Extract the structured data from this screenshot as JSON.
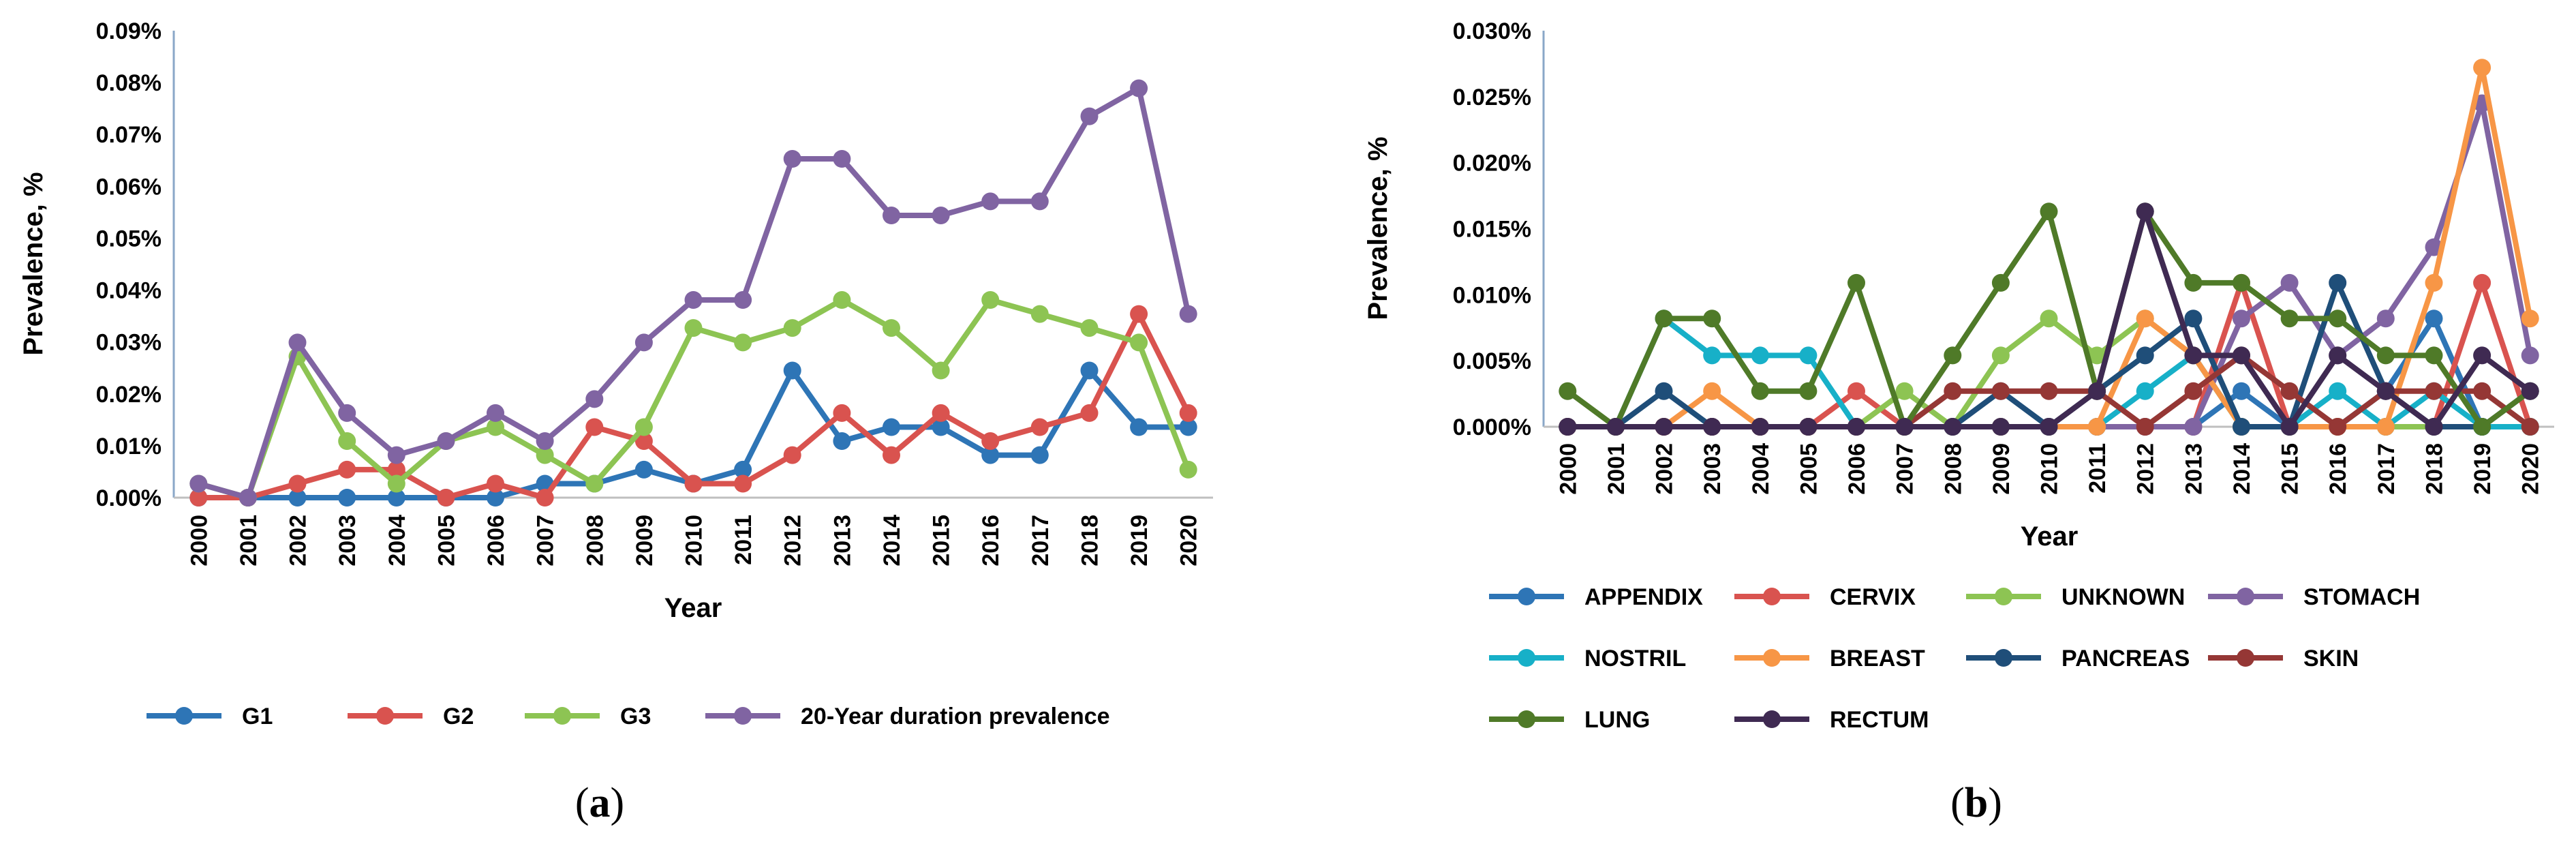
{
  "chart_data": [
    {
      "type": "line",
      "caption": "a",
      "xlabel": "Year",
      "ylabel": "Prevalence, %",
      "ylim": [
        0,
        0.09
      ],
      "yticks": [
        "0.00%",
        "0.01%",
        "0.02%",
        "0.03%",
        "0.04%",
        "0.05%",
        "0.06%",
        "0.07%",
        "0.08%",
        "0.09%"
      ],
      "categories": [
        "2000",
        "2001",
        "2002",
        "2003",
        "2004",
        "2005",
        "2006",
        "2007",
        "2008",
        "2009",
        "2010",
        "2011",
        "2012",
        "2013",
        "2014",
        "2015",
        "2016",
        "2017",
        "2018",
        "2019",
        "2020"
      ],
      "legend_position": "bottom",
      "series": [
        {
          "name": "G1",
          "color": "#2E75B6",
          "values": [
            0,
            0,
            0,
            0,
            0,
            0,
            0,
            0.0027,
            0.0027,
            0.0054,
            0.0027,
            0.0054,
            0.0245,
            0.0109,
            0.0136,
            0.0136,
            0.0082,
            0.0082,
            0.0245,
            0.0136,
            0.0136
          ]
        },
        {
          "name": "G2",
          "color": "#D9534F",
          "values": [
            0,
            0,
            0.0027,
            0.0054,
            0.0054,
            0,
            0.0027,
            0,
            0.0136,
            0.0109,
            0.0027,
            0.0027,
            0.0082,
            0.0163,
            0.0082,
            0.0163,
            0.0109,
            0.0136,
            0.0163,
            0.0354,
            0.0163
          ]
        },
        {
          "name": "G3",
          "color": "#8DC453",
          "values": [
            0.0027,
            0,
            0.0272,
            0.0109,
            0.0027,
            0.0109,
            0.0136,
            0.0082,
            0.0027,
            0.0136,
            0.0327,
            0.0299,
            0.0327,
            0.0381,
            0.0327,
            0.0245,
            0.0381,
            0.0354,
            0.0327,
            0.0299,
            0.0054
          ]
        },
        {
          "name": "20-Year duration prevalence",
          "color": "#8064A2",
          "values": [
            0.0027,
            0,
            0.0299,
            0.0163,
            0.0082,
            0.0109,
            0.0163,
            0.0109,
            0.019,
            0.0299,
            0.0381,
            0.0381,
            0.0653,
            0.0653,
            0.0544,
            0.0544,
            0.0571,
            0.0571,
            0.0735,
            0.0789,
            0.0354
          ]
        }
      ]
    },
    {
      "type": "line",
      "caption": "b",
      "xlabel": "Year",
      "ylabel": "Prevalence, %",
      "ylim": [
        0,
        0.03
      ],
      "yticks": [
        "0.000%",
        "0.005%",
        "0.010%",
        "0.015%",
        "0.020%",
        "0.025%",
        "0.030%"
      ],
      "categories": [
        "2000",
        "2001",
        "2002",
        "2003",
        "2004",
        "2005",
        "2006",
        "2007",
        "2008",
        "2009",
        "2010",
        "2011",
        "2012",
        "2013",
        "2014",
        "2015",
        "2016",
        "2017",
        "2018",
        "2019",
        "2020"
      ],
      "legend_position": "bottom",
      "series": [
        {
          "name": "APPENDIX",
          "color": "#2E75B6",
          "values": [
            0,
            0,
            0,
            0,
            0,
            0,
            0,
            0,
            0,
            0,
            0,
            0,
            0,
            0,
            0.0027,
            0,
            0,
            0.0027,
            0.0082,
            0,
            0
          ]
        },
        {
          "name": "CERVIX",
          "color": "#D9534F",
          "values": [
            0,
            0,
            0,
            0,
            0,
            0,
            0.0027,
            0,
            0,
            0,
            0,
            0,
            0,
            0,
            0.0109,
            0,
            0,
            0,
            0,
            0.0109,
            0
          ]
        },
        {
          "name": "UNKNOWN",
          "color": "#8DC453",
          "values": [
            0,
            0,
            0,
            0,
            0,
            0,
            0,
            0.0027,
            0,
            0.0054,
            0.0082,
            0.0054,
            0.0082,
            0.0054,
            0,
            0,
            0,
            0,
            0,
            0,
            0
          ]
        },
        {
          "name": "STOMACH",
          "color": "#8064A2",
          "values": [
            0,
            0,
            0,
            0,
            0,
            0,
            0,
            0,
            0,
            0,
            0,
            0,
            0,
            0,
            0.0082,
            0.0109,
            0.0054,
            0.0082,
            0.0136,
            0.0245,
            0.0054
          ]
        },
        {
          "name": "NOSTRIL",
          "color": "#17B0C8",
          "values": [
            0,
            0,
            0.0082,
            0.0054,
            0.0054,
            0.0054,
            0,
            0,
            0,
            0,
            0,
            0,
            0.0027,
            0.0054,
            0,
            0,
            0.0027,
            0,
            0.0027,
            0,
            0
          ]
        },
        {
          "name": "BREAST",
          "color": "#F79646",
          "values": [
            0,
            0,
            0,
            0.0027,
            0,
            0,
            0,
            0,
            0,
            0,
            0,
            0,
            0.0082,
            0.0054,
            0,
            0,
            0,
            0,
            0.0109,
            0.0272,
            0.0082
          ]
        },
        {
          "name": "PANCREAS",
          "color": "#1F4E79",
          "values": [
            0,
            0,
            0.0027,
            0,
            0,
            0,
            0,
            0,
            0,
            0.0027,
            0,
            0.0027,
            0.0054,
            0.0082,
            0,
            0,
            0.0109,
            0.0027,
            0,
            0,
            0.0027
          ]
        },
        {
          "name": "SKIN",
          "color": "#953735",
          "values": [
            0,
            0,
            0,
            0,
            0,
            0,
            0,
            0,
            0.0027,
            0.0027,
            0.0027,
            0.0027,
            0,
            0.0027,
            0.0054,
            0.0027,
            0,
            0.0027,
            0.0027,
            0.0027,
            0
          ]
        },
        {
          "name": "LUNG",
          "color": "#4F7A28",
          "values": [
            0.0027,
            0,
            0.0082,
            0.0082,
            0.0027,
            0.0027,
            0.0109,
            0,
            0.0054,
            0.0109,
            0.0163,
            0.0027,
            0.0163,
            0.0109,
            0.0109,
            0.0082,
            0.0082,
            0.0054,
            0.0054,
            0,
            0.0027
          ]
        },
        {
          "name": "RECTUM",
          "color": "#3F2A52",
          "values": [
            0,
            0,
            0,
            0,
            0,
            0,
            0,
            0,
            0,
            0,
            0,
            0.0027,
            0.0163,
            0.0054,
            0.0054,
            0,
            0.0054,
            0.0027,
            0,
            0.0054,
            0.0027
          ]
        }
      ]
    }
  ]
}
